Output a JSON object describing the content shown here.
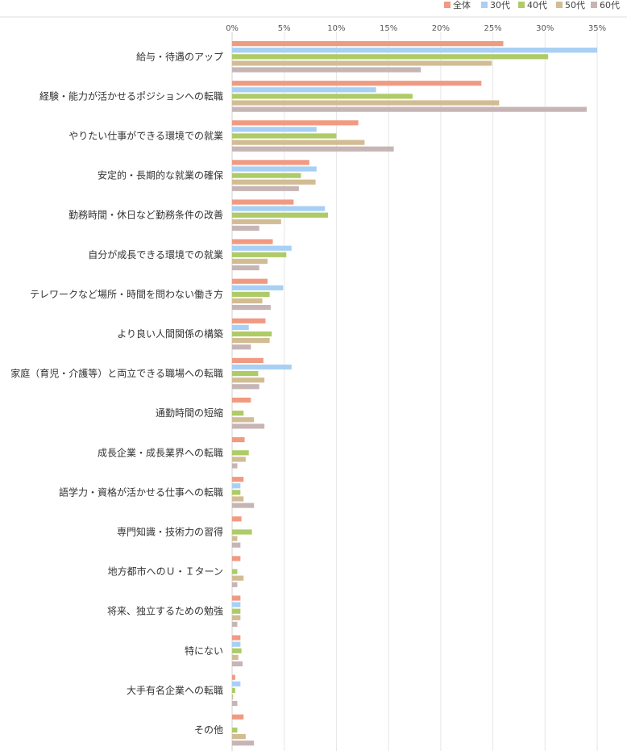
{
  "chart_data": {
    "type": "bar",
    "orientation": "horizontal",
    "title": "",
    "xlabel": "",
    "ylabel": "",
    "xlim": [
      0,
      35
    ],
    "xticks": [
      0,
      5,
      10,
      15,
      20,
      25,
      30,
      35
    ],
    "xtick_labels": [
      "0%",
      "5%",
      "10%",
      "15%",
      "20%",
      "25%",
      "30%",
      "35%"
    ],
    "grid": true,
    "legend_position": "top-right",
    "categories": [
      "給与・待遇のアップ",
      "経験・能力が活かせるポジションへの転職",
      "やりたい仕事ができる環境での就業",
      "安定的・長期的な就業の確保",
      "勤務時間・休日など勤務条件の改善",
      "自分が成長できる環境での就業",
      "テレワークなど場所・時間を問わない働き方",
      "より良い人間関係の構築",
      "家庭（育児・介護等）と両立できる職場への転職",
      "通勤時間の短縮",
      "成長企業・成長業界への転職",
      "語学力・資格が活かせる仕事への転職",
      "専門知識・技術力の習得",
      "地方都市へのＵ・Ｉターン",
      "将来、独立するための勉強",
      "特にない",
      "大手有名企業への転職",
      "その他"
    ],
    "series": [
      {
        "name": "全体",
        "color": "#f19a82",
        "values": [
          26.0,
          23.9,
          12.1,
          7.4,
          5.9,
          3.9,
          3.4,
          3.2,
          3.0,
          1.8,
          1.2,
          1.1,
          0.9,
          0.8,
          0.8,
          0.8,
          0.3,
          1.1
        ]
      },
      {
        "name": "30代",
        "color": "#a8d0f5",
        "values": [
          35.0,
          13.8,
          8.1,
          8.1,
          8.9,
          5.7,
          4.9,
          1.6,
          5.7,
          0.0,
          0.0,
          0.8,
          0.0,
          0.0,
          0.8,
          0.8,
          0.8,
          0.0
        ]
      },
      {
        "name": "40代",
        "color": "#aecb66",
        "values": [
          30.3,
          17.3,
          10.0,
          6.6,
          9.2,
          5.2,
          3.6,
          3.8,
          2.5,
          1.1,
          1.6,
          0.8,
          1.9,
          0.5,
          0.8,
          0.9,
          0.3,
          0.5
        ]
      },
      {
        "name": "50代",
        "color": "#d2bc93",
        "values": [
          24.9,
          25.6,
          12.7,
          8.0,
          4.7,
          3.4,
          2.9,
          3.6,
          3.1,
          2.1,
          1.3,
          1.1,
          0.5,
          1.1,
          0.8,
          0.6,
          0.1,
          1.3
        ]
      },
      {
        "name": "60代",
        "color": "#c7b5b5",
        "values": [
          18.1,
          34.0,
          15.5,
          6.4,
          2.6,
          2.6,
          3.7,
          1.8,
          2.6,
          3.1,
          0.5,
          2.1,
          0.8,
          0.5,
          0.5,
          1.0,
          0.5,
          2.1
        ]
      }
    ]
  }
}
